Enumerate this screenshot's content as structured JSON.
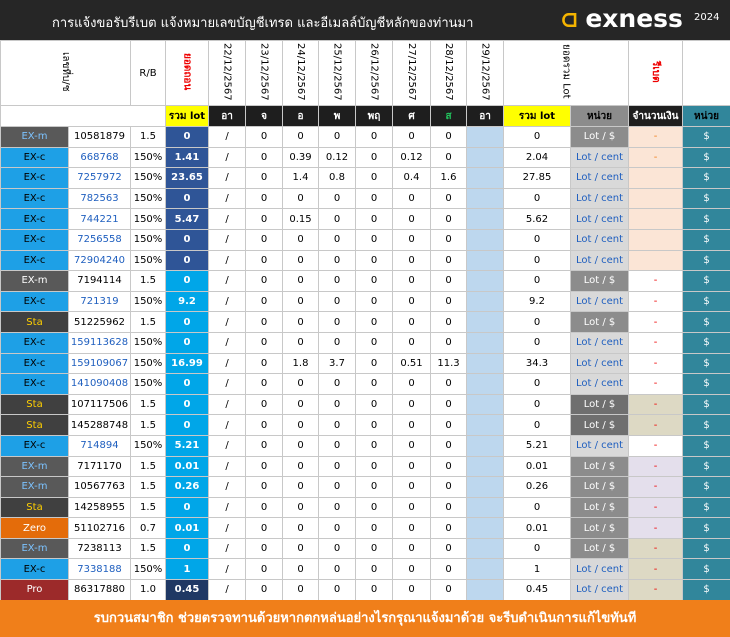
{
  "header": {
    "title": "การแจ้งขอรับรีเบต  แจ้งหมายเลขบัญชีเทรด และอีเมลล์บัญชีหลักของท่านมา",
    "logo": "exness",
    "year": "2024"
  },
  "table": {
    "head": [
      "เลขที่บ/ช",
      "R/B",
      "ยอดถอน",
      "22/12/2567",
      "23/12/2567",
      "24/12/2567",
      "25/12/2567",
      "26/12/2567",
      "27/12/2567",
      "28/12/2567",
      "29/12/2567",
      "ยอดรวม Lot",
      "รีเบต"
    ],
    "subhead": [
      "รวม lot",
      "อา",
      "จ",
      "อ",
      "พ",
      "พฤ",
      "ศ",
      "ส",
      "อา",
      "รวม lot",
      "หน่วย",
      "จำนวนเงิน",
      "หน่วย"
    ],
    "rows": [
      [
        "EX-m",
        "10581879",
        1.5,
        0,
        "/",
        0,
        0,
        0,
        0,
        0,
        0,
        null,
        0,
        "Lot / $",
        "-",
        "$"
      ],
      [
        "EX-c",
        "668768",
        "150%",
        1.41,
        "/",
        0,
        0.39,
        0.12,
        0,
        0.12,
        0,
        null,
        2.04,
        "Lot / cent",
        "-",
        "$"
      ],
      [
        "EX-c",
        "7257972",
        "150%",
        23.65,
        "/",
        0,
        1.4,
        0.8,
        0,
        0.4,
        1.6,
        null,
        27.85,
        "Lot / cent",
        null,
        "$"
      ],
      [
        "EX-c",
        "782563",
        "150%",
        0,
        "/",
        0,
        0,
        0,
        0,
        0,
        0,
        null,
        0,
        "Lot / cent",
        null,
        "$"
      ],
      [
        "EX-c",
        "744221",
        "150%",
        5.47,
        "/",
        0,
        0.15,
        0,
        0,
        0,
        0,
        null,
        5.62,
        "Lot / cent",
        null,
        "$"
      ],
      [
        "EX-c",
        "7256558",
        "150%",
        0,
        "/",
        0,
        0,
        0,
        0,
        0,
        0,
        null,
        0,
        "Lot / cent",
        null,
        "$"
      ],
      [
        "EX-c",
        "72904240",
        "150%",
        0,
        "/",
        0,
        0,
        0,
        0,
        0,
        0,
        null,
        0,
        "Lot / cent",
        null,
        "$"
      ],
      [
        "EX-m",
        "7194114",
        1.5,
        0,
        "/",
        0,
        0,
        0,
        0,
        0,
        0,
        null,
        0,
        "Lot / $",
        "-",
        "$"
      ],
      [
        "EX-c",
        "721319",
        "150%",
        9.2,
        "/",
        0,
        0,
        0,
        0,
        0,
        0,
        null,
        9.2,
        "Lot / cent",
        "-",
        "$"
      ],
      [
        "Sta",
        "51225962",
        1.5,
        0,
        "/",
        0,
        0,
        0,
        0,
        0,
        0,
        null,
        0,
        "Lot / $",
        "-",
        "$"
      ],
      [
        "EX-c",
        "159113628",
        "150%",
        0,
        "/",
        0,
        0,
        0,
        0,
        0,
        0,
        null,
        0,
        "Lot / cent",
        "-",
        "$"
      ],
      [
        "EX-c",
        "159109067",
        "150%",
        16.99,
        "/",
        0,
        1.8,
        3.7,
        0,
        0.51,
        11.3,
        null,
        34.3,
        "Lot / cent",
        "-",
        "$"
      ],
      [
        "EX-c",
        "141090408",
        "150%",
        0,
        "/",
        0,
        0,
        0,
        0,
        0,
        0,
        null,
        0,
        "Lot / cent",
        "-",
        "$"
      ],
      [
        "Sta",
        "107117506",
        1.5,
        0,
        "/",
        0,
        0,
        0,
        0,
        0,
        0,
        null,
        0,
        "Lot / $",
        "-",
        "$"
      ],
      [
        "Sta",
        "145288748",
        1.5,
        0,
        "/",
        0,
        0,
        0,
        0,
        0,
        0,
        null,
        0,
        "Lot / $",
        "-",
        "$"
      ],
      [
        "EX-c",
        "714894",
        "150%",
        5.21,
        "/",
        0,
        0,
        0,
        0,
        0,
        0,
        null,
        5.21,
        "Lot / cent",
        "-",
        "$"
      ],
      [
        "EX-m",
        "7171170",
        1.5,
        0.01,
        "/",
        0,
        0,
        0,
        0,
        0,
        0,
        null,
        0.01,
        "Lot / $",
        "-",
        "$"
      ],
      [
        "EX-m",
        "10567763",
        1.5,
        0.26,
        "/",
        0,
        0,
        0,
        0,
        0,
        0,
        null,
        0.26,
        "Lot / $",
        "-",
        "$"
      ],
      [
        "Sta",
        "14258955",
        1.5,
        0,
        "/",
        0,
        0,
        0,
        0,
        0,
        0,
        null,
        0,
        "Lot / $",
        "-",
        "$"
      ],
      [
        "Zero",
        "51102716",
        0.7,
        0.01,
        "/",
        0,
        0,
        0,
        0,
        0,
        0,
        null,
        0.01,
        "Lot / $",
        "-",
        "$"
      ],
      [
        "EX-m",
        "7238113",
        1.5,
        0,
        "/",
        0,
        0,
        0,
        0,
        0,
        0,
        null,
        0,
        "Lot / $",
        "-",
        "$"
      ],
      [
        "EX-c",
        "7338188",
        "150%",
        1,
        "/",
        0,
        0,
        0,
        0,
        0,
        0,
        null,
        1,
        "Lot / cent",
        "-",
        "$"
      ],
      [
        "Pro",
        "86317880",
        "1.0",
        0.45,
        "/",
        0,
        0,
        0,
        0,
        0,
        0,
        null,
        0.45,
        "Lot / cent",
        "-",
        "$"
      ]
    ]
  },
  "footer": "รบกวนสมาชิก ช่วยตรวจทานด้วยหากตกหล่นอย่างไรกรุณาแจ้งมาด้วย จะรีบดำเนินการแก้ไขทันที"
}
